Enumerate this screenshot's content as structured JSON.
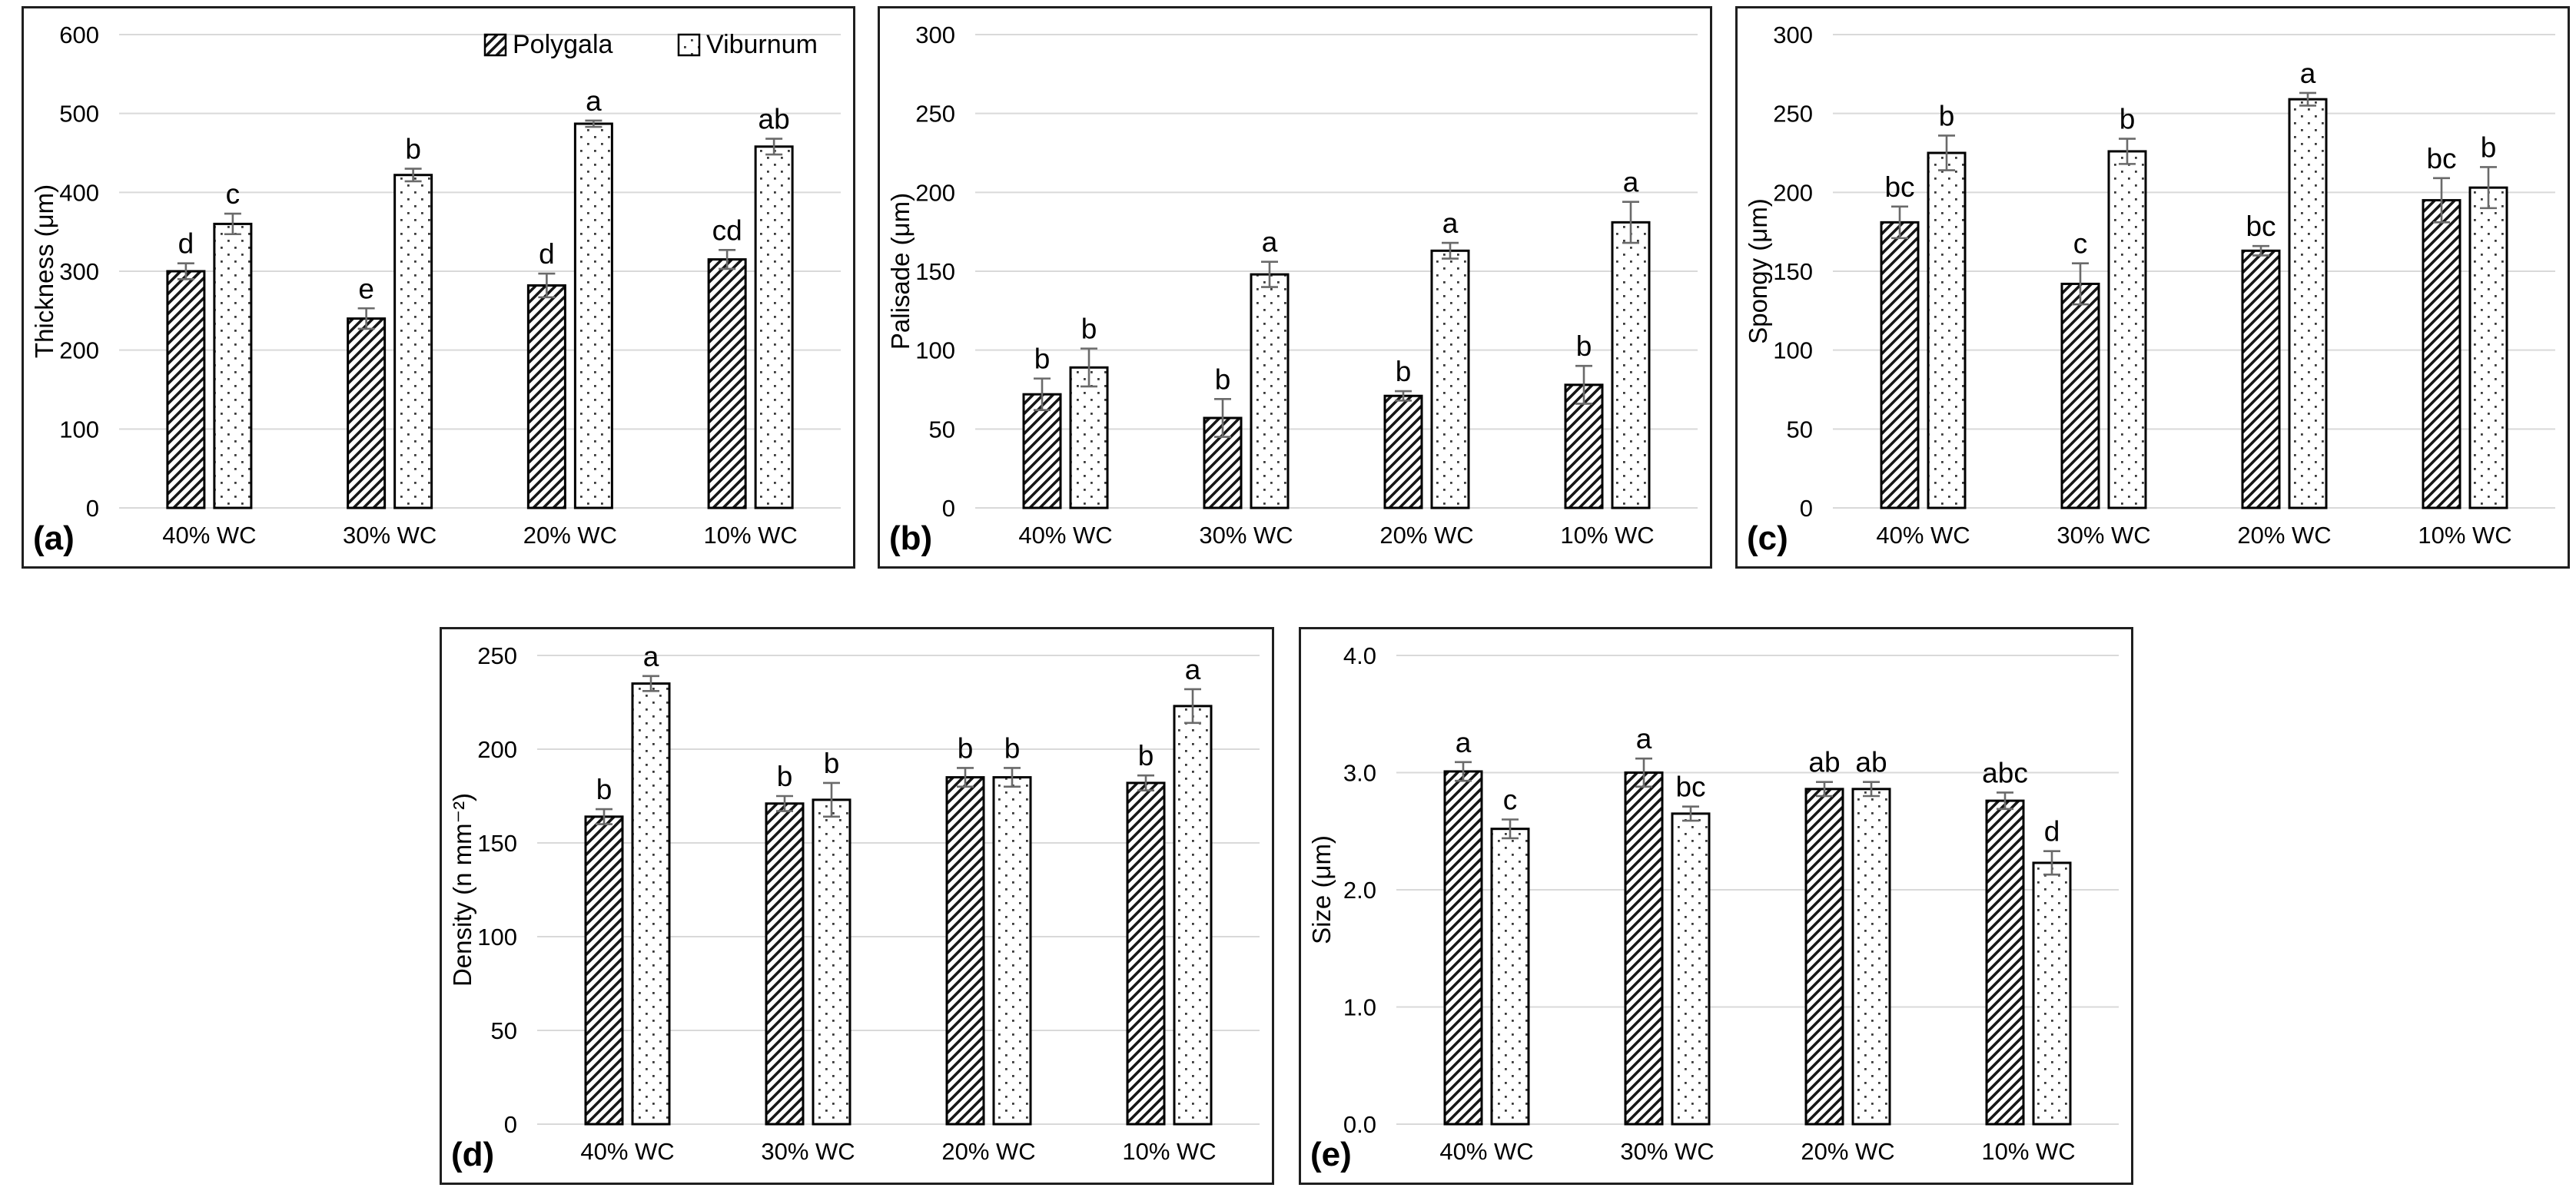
{
  "figure": {
    "background": "#ffffff",
    "panel_border_color": "#1f1f1f",
    "gridline_color": "#d9d9d9",
    "errorbar_color": "#6a6a6a",
    "bar_outline_color": "#000000",
    "text_color": "#000000",
    "categories": [
      "40% WC",
      "30% WC",
      "20% WC",
      "10% WC"
    ],
    "series_names": [
      "Polygala",
      "Viburnum"
    ]
  },
  "legend": {
    "items": [
      {
        "label": "Polygala",
        "pattern": "diagonal-hatch"
      },
      {
        "label": "Viburnum",
        "pattern": "dots"
      }
    ],
    "position": "top-right-of-panel-a"
  },
  "chart_data": [
    {
      "id": "a",
      "panel_label": "(a)",
      "type": "bar",
      "title": "",
      "xlabel": "",
      "ylabel": "Thickness (μm)",
      "ylim": [
        0,
        600
      ],
      "yticks": [
        0,
        100,
        200,
        300,
        400,
        500,
        600
      ],
      "ytick_labels": [
        "0",
        "100",
        "200",
        "300",
        "400",
        "500",
        "600"
      ],
      "grid": true,
      "legend": true,
      "categories": [
        "40% WC",
        "30% WC",
        "20% WC",
        "10% WC"
      ],
      "series": [
        {
          "name": "Polygala",
          "pattern": "diagonal-hatch",
          "values": [
            300,
            240,
            282,
            315
          ],
          "errors": [
            10,
            13,
            15,
            12
          ],
          "sig_letters": [
            "d",
            "e",
            "d",
            "cd"
          ]
        },
        {
          "name": "Viburnum",
          "pattern": "dots",
          "values": [
            360,
            422,
            487,
            458
          ],
          "errors": [
            13,
            8,
            4,
            10
          ],
          "sig_letters": [
            "c",
            "b",
            "a",
            "ab"
          ]
        }
      ]
    },
    {
      "id": "b",
      "panel_label": "(b)",
      "type": "bar",
      "title": "",
      "xlabel": "",
      "ylabel": "Palisade (μm)",
      "ylim": [
        0,
        300
      ],
      "yticks": [
        0,
        50,
        100,
        150,
        200,
        250,
        300
      ],
      "ytick_labels": [
        "0",
        "50",
        "100",
        "150",
        "200",
        "250",
        "300"
      ],
      "grid": true,
      "legend": false,
      "categories": [
        "40% WC",
        "30% WC",
        "20% WC",
        "10% WC"
      ],
      "series": [
        {
          "name": "Polygala",
          "pattern": "diagonal-hatch",
          "values": [
            72,
            57,
            71,
            78
          ],
          "errors": [
            10,
            12,
            3,
            12
          ],
          "sig_letters": [
            "b",
            "b",
            "b",
            "b"
          ]
        },
        {
          "name": "Viburnum",
          "pattern": "dots",
          "values": [
            89,
            148,
            163,
            181
          ],
          "errors": [
            12,
            8,
            5,
            13
          ],
          "sig_letters": [
            "b",
            "a",
            "a",
            "a"
          ]
        }
      ]
    },
    {
      "id": "c",
      "panel_label": "(c)",
      "type": "bar",
      "title": "",
      "xlabel": "",
      "ylabel": "Spongy (μm)",
      "ylim": [
        0,
        300
      ],
      "yticks": [
        0,
        50,
        100,
        150,
        200,
        250,
        300
      ],
      "ytick_labels": [
        "0",
        "50",
        "100",
        "150",
        "200",
        "250",
        "300"
      ],
      "grid": true,
      "legend": false,
      "categories": [
        "40% WC",
        "30% WC",
        "20% WC",
        "10% WC"
      ],
      "series": [
        {
          "name": "Polygala",
          "pattern": "diagonal-hatch",
          "values": [
            181,
            142,
            163,
            195
          ],
          "errors": [
            10,
            13,
            3,
            14
          ],
          "sig_letters": [
            "bc",
            "c",
            "bc",
            "bc"
          ]
        },
        {
          "name": "Viburnum",
          "pattern": "dots",
          "values": [
            225,
            226,
            259,
            203
          ],
          "errors": [
            11,
            8,
            4,
            13
          ],
          "sig_letters": [
            "b",
            "b",
            "a",
            "b"
          ]
        }
      ]
    },
    {
      "id": "d",
      "panel_label": "(d)",
      "type": "bar",
      "title": "",
      "xlabel": "",
      "ylabel": "Density (n mm⁻²)",
      "ylim": [
        0,
        250
      ],
      "yticks": [
        0,
        50,
        100,
        150,
        200,
        250
      ],
      "ytick_labels": [
        "0",
        "50",
        "100",
        "150",
        "200",
        "250"
      ],
      "grid": true,
      "legend": false,
      "categories": [
        "40% WC",
        "30% WC",
        "20% WC",
        "10% WC"
      ],
      "series": [
        {
          "name": "Polygala",
          "pattern": "diagonal-hatch",
          "values": [
            164,
            171,
            185,
            182
          ],
          "errors": [
            4,
            4,
            5,
            4
          ],
          "sig_letters": [
            "b",
            "b",
            "b",
            "b"
          ]
        },
        {
          "name": "Viburnum",
          "pattern": "dots",
          "values": [
            235,
            173,
            185,
            223
          ],
          "errors": [
            4,
            9,
            5,
            9
          ],
          "sig_letters": [
            "a",
            "b",
            "b",
            "a"
          ]
        }
      ]
    },
    {
      "id": "e",
      "panel_label": "(e)",
      "type": "bar",
      "title": "",
      "xlabel": "",
      "ylabel": "Size (μm)",
      "ylim": [
        0,
        4.0
      ],
      "yticks": [
        0,
        1,
        2,
        3,
        4
      ],
      "ytick_labels": [
        "0.0",
        "1.0",
        "2.0",
        "3.0",
        "4.0"
      ],
      "grid": true,
      "legend": false,
      "categories": [
        "40% WC",
        "30% WC",
        "20% WC",
        "10% WC"
      ],
      "series": [
        {
          "name": "Polygala",
          "pattern": "diagonal-hatch",
          "values": [
            3.01,
            3.0,
            2.86,
            2.76
          ],
          "errors": [
            0.08,
            0.12,
            0.06,
            0.07
          ],
          "sig_letters": [
            "a",
            "a",
            "ab",
            "abc"
          ]
        },
        {
          "name": "Viburnum",
          "pattern": "dots",
          "values": [
            2.52,
            2.65,
            2.86,
            2.23
          ],
          "errors": [
            0.08,
            0.06,
            0.06,
            0.1
          ],
          "sig_letters": [
            "c",
            "bc",
            "ab",
            "d"
          ]
        }
      ]
    }
  ]
}
